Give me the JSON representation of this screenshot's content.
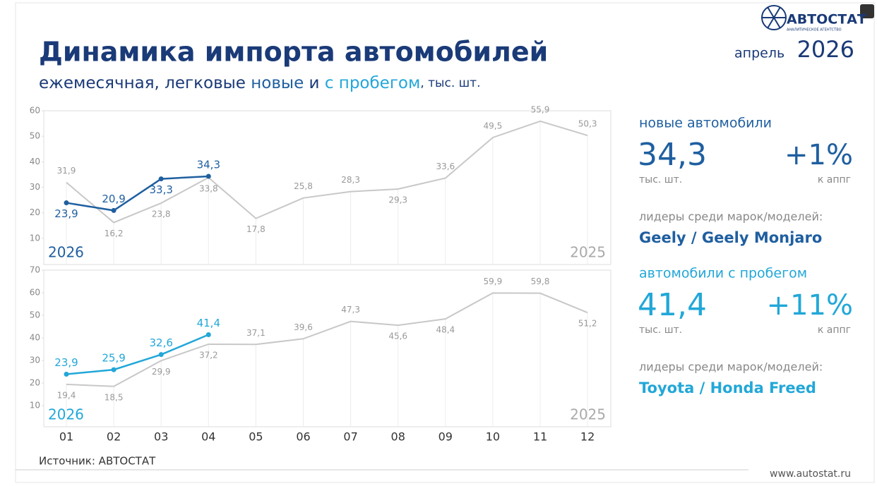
{
  "header": {
    "title": "Динамика импорта автомобилей",
    "subtitle": [
      "ежемесячная, легковые ",
      "новые",
      " и ",
      "с пробегом",
      ", тыс. шт."
    ],
    "month": "апрель",
    "year": "2026"
  },
  "logo": {
    "name": "АВТОСТАТ",
    "tagline": "АНАЛИТИЧЕСКОЕ АГЕНТСТВО"
  },
  "panels": [
    {
      "label": "новые автомобили",
      "value": "34,3",
      "unit": "тыс. шт.",
      "change": "+1%",
      "change_label": "к аппг",
      "leaders_label": "лидеры среди марок/моделей:",
      "leaders": "Geely / Geely Monjaro",
      "color": "#1f5fa0"
    },
    {
      "label": "автомобили с пробегом",
      "value": "41,4",
      "unit": "тыс. шт.",
      "change": "+11%",
      "change_label": "к аппг",
      "leaders_label": "лидеры среди марок/моделей:",
      "leaders": "Toyota / Honda Freed",
      "color": "#22a7d8"
    }
  ],
  "chart_data": [
    {
      "type": "line",
      "ylim": [
        0,
        60
      ],
      "yticks": [
        10,
        20,
        30,
        40,
        50,
        60
      ],
      "series": [
        {
          "name": "2025",
          "color": "#c8c8c8",
          "values": [
            31.9,
            16.2,
            23.8,
            33.8,
            17.8,
            25.8,
            28.3,
            29.3,
            33.6,
            49.5,
            55.9,
            50.3
          ],
          "value_labels": [
            "31,9",
            "16,2",
            "23,8",
            "33,8",
            "17,8",
            "25,8",
            "28,3",
            "29,3",
            "33,6",
            "49,5",
            "55,9",
            "50,3"
          ]
        },
        {
          "name": "2026",
          "color": "#1f5fa0",
          "values": [
            23.9,
            20.9,
            33.3,
            34.3,
            null,
            null,
            null,
            null,
            null,
            null,
            null,
            null
          ],
          "value_labels": [
            "23,9",
            "20,9",
            "33,3",
            "34,3",
            null,
            null,
            null,
            null,
            null,
            null,
            null,
            null
          ]
        }
      ]
    },
    {
      "type": "line",
      "ylim": [
        0,
        70
      ],
      "yticks": [
        10,
        20,
        30,
        40,
        50,
        60,
        70
      ],
      "categories": [
        "01",
        "02",
        "03",
        "04",
        "05",
        "06",
        "07",
        "08",
        "09",
        "10",
        "11",
        "12"
      ],
      "series": [
        {
          "name": "2025",
          "color": "#c8c8c8",
          "values": [
            19.4,
            18.5,
            29.9,
            37.2,
            37.1,
            39.6,
            47.3,
            45.6,
            48.4,
            59.9,
            59.8,
            51.2
          ],
          "value_labels": [
            "19,4",
            "18,5",
            "29,9",
            "37,2",
            "37,1",
            "39,6",
            "47,3",
            "45,6",
            "48,4",
            "59,9",
            "59,8",
            "51,2"
          ]
        },
        {
          "name": "2026",
          "color": "#22a7d8",
          "values": [
            23.9,
            25.9,
            32.6,
            41.4,
            null,
            null,
            null,
            null,
            null,
            null,
            null,
            null
          ],
          "value_labels": [
            "23,9",
            "25,9",
            "32,6",
            "41,4",
            null,
            null,
            null,
            null,
            null,
            null,
            null,
            null
          ]
        }
      ]
    }
  ],
  "source": "Источник: АВТОСТАТ",
  "url": "www.autostat.ru"
}
